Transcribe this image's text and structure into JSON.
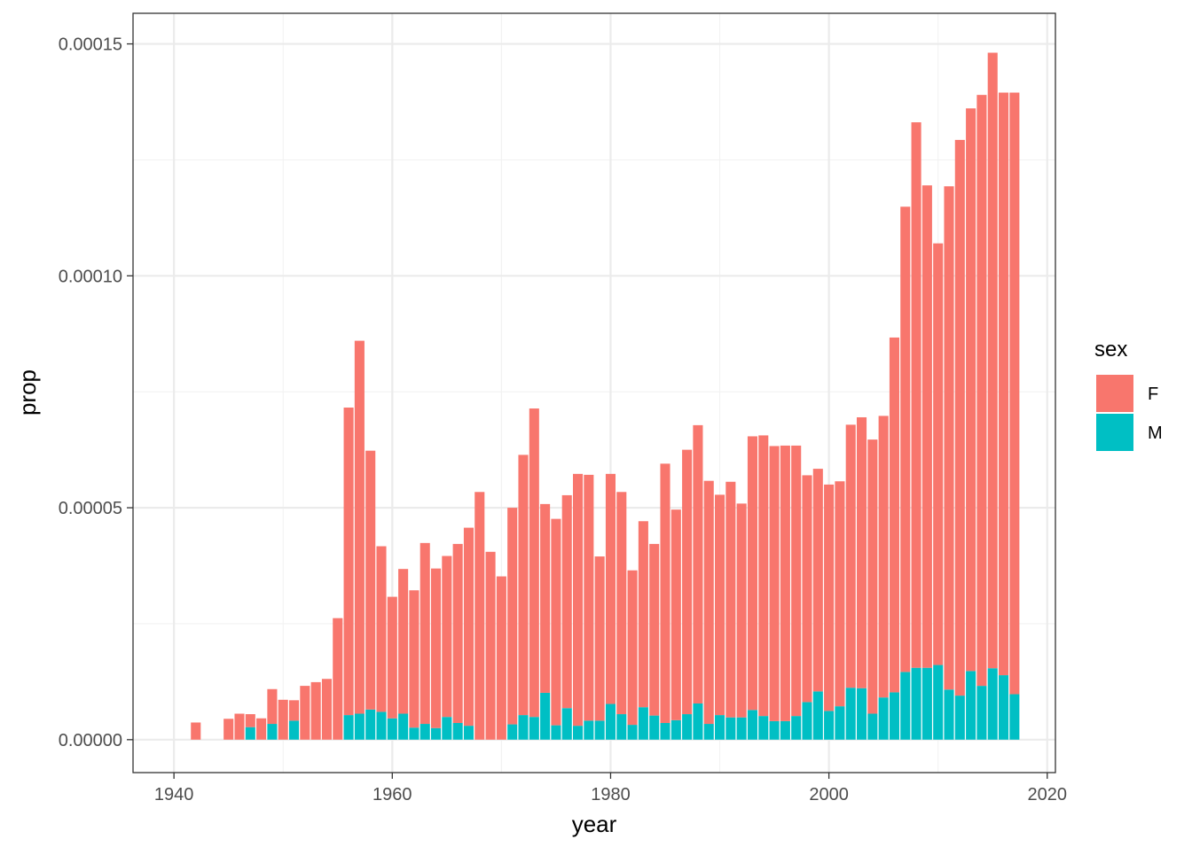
{
  "chart_data": {
    "type": "bar",
    "stacked": true,
    "xlabel": "year",
    "ylabel": "prop",
    "xlim": [
      1936.25,
      2020.75
    ],
    "ylim": [
      -7.1e-06,
      0.0001566
    ],
    "xticks": [
      1940,
      1960,
      1980,
      2000,
      2020
    ],
    "yticks": [
      0,
      5e-05,
      0.0001,
      0.00015
    ],
    "ytick_labels": [
      "0.00000",
      "0.00005",
      "0.00010",
      "0.00015"
    ],
    "grid": true,
    "legend": {
      "title": "sex",
      "position": "right"
    },
    "x": [
      1942,
      1945,
      1946,
      1947,
      1948,
      1949,
      1950,
      1951,
      1952,
      1953,
      1954,
      1955,
      1956,
      1957,
      1958,
      1959,
      1960,
      1961,
      1962,
      1963,
      1964,
      1965,
      1966,
      1967,
      1968,
      1969,
      1970,
      1971,
      1972,
      1973,
      1974,
      1975,
      1976,
      1977,
      1978,
      1979,
      1980,
      1981,
      1982,
      1983,
      1984,
      1985,
      1986,
      1987,
      1988,
      1989,
      1990,
      1991,
      1992,
      1993,
      1994,
      1995,
      1996,
      1997,
      1998,
      1999,
      2000,
      2001,
      2002,
      2003,
      2004,
      2005,
      2006,
      2007,
      2008,
      2009,
      2010,
      2011,
      2012,
      2013,
      2014,
      2015,
      2016,
      2017
    ],
    "series": [
      {
        "name": "M",
        "color": "#00BFC4",
        "values": [
          0,
          0,
          0,
          2.7e-06,
          0,
          3.4e-06,
          0,
          4.1e-06,
          0,
          0,
          0,
          0,
          5.3e-06,
          5.6e-06,
          6.5e-06,
          6e-06,
          4.6e-06,
          5.6e-06,
          2.6e-06,
          3.4e-06,
          2.5e-06,
          4.9e-06,
          3.6e-06,
          3e-06,
          0,
          0,
          0,
          3.3e-06,
          5.3e-06,
          4.9e-06,
          1.01e-05,
          3.1e-06,
          6.8e-06,
          3e-06,
          4.1e-06,
          4.1e-06,
          7.7e-06,
          5.5e-06,
          3.2e-06,
          7e-06,
          5.2e-06,
          3.6e-06,
          4.2e-06,
          5.5e-06,
          7.8e-06,
          3.4e-06,
          5.3e-06,
          4.8e-06,
          4.8e-06,
          6.4e-06,
          5.1e-06,
          4e-06,
          4e-06,
          5.1e-06,
          8.1e-06,
          1.04e-05,
          6.2e-06,
          7.2e-06,
          1.12e-05,
          1.11e-05,
          5.6e-06,
          9.1e-06,
          1.02e-05,
          1.46e-05,
          1.55e-05,
          1.55e-05,
          1.61e-05,
          1.08e-05,
          9.5e-06,
          1.48e-05,
          1.16e-05,
          1.54e-05,
          1.39e-05,
          9.8e-06
        ]
      },
      {
        "name": "F",
        "color": "#F8766D",
        "values": [
          3.7e-06,
          4.5e-06,
          5.6e-06,
          2.8e-06,
          4.6e-06,
          7.5e-06,
          8.6e-06,
          4.4e-06,
          1.16e-05,
          1.24e-05,
          1.31e-05,
          2.62e-05,
          6.63e-05,
          8.04e-05,
          5.58e-05,
          3.57e-05,
          2.62e-05,
          3.12e-05,
          2.96e-05,
          3.9e-05,
          3.44e-05,
          3.47e-05,
          3.86e-05,
          4.27e-05,
          5.34e-05,
          4.05e-05,
          3.52e-05,
          4.67e-05,
          5.61e-05,
          6.65e-05,
          4.07e-05,
          4.45e-05,
          4.59e-05,
          5.43e-05,
          5.3e-05,
          3.54e-05,
          4.96e-05,
          4.79e-05,
          3.33e-05,
          4.01e-05,
          3.7e-05,
          5.59e-05,
          4.54e-05,
          5.7e-05,
          6e-05,
          5.24e-05,
          4.75e-05,
          5.08e-05,
          4.61e-05,
          5.9e-05,
          6.05e-05,
          5.93e-05,
          5.94e-05,
          5.83e-05,
          4.89e-05,
          4.8e-05,
          4.88e-05,
          4.85e-05,
          5.67e-05,
          5.84e-05,
          5.91e-05,
          6.07e-05,
          7.65e-05,
          0.0001003,
          0.0001176,
          0.000104,
          9.09e-05,
          0.0001085,
          0.0001198,
          0.0001213,
          0.0001274,
          0.0001327,
          0.0001256,
          0.0001297
        ]
      }
    ]
  }
}
